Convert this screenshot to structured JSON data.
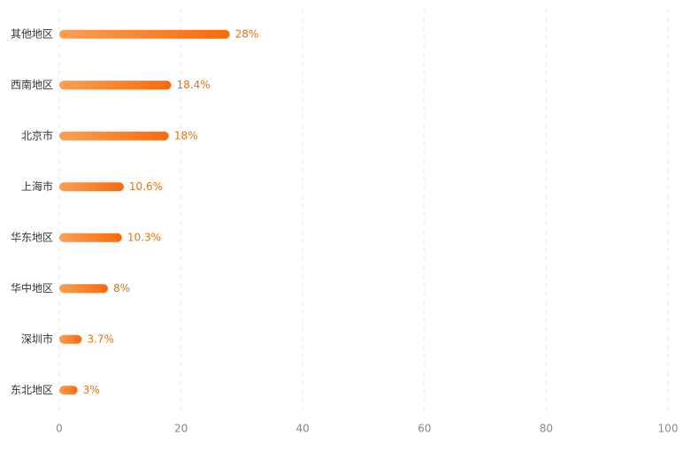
{
  "chart_data": {
    "type": "bar",
    "orientation": "horizontal",
    "categories": [
      "其他地区",
      "西南地区",
      "北京市",
      "上海市",
      "华东地区",
      "华中地区",
      "深圳市",
      "东北地区"
    ],
    "values": [
      28,
      18.4,
      18,
      10.6,
      10.3,
      8,
      3.7,
      3
    ],
    "value_labels": [
      "28%",
      "18.4%",
      "18%",
      "10.6%",
      "10.3%",
      "8%",
      "3.7%",
      "3%"
    ],
    "colors": [
      "#fb9f55",
      "#f96a0b"
    ],
    "label_color": "#e8720c",
    "xlim": [
      0,
      100
    ],
    "xticks": [
      0,
      20,
      40,
      60,
      80,
      100
    ],
    "grid": true
  }
}
